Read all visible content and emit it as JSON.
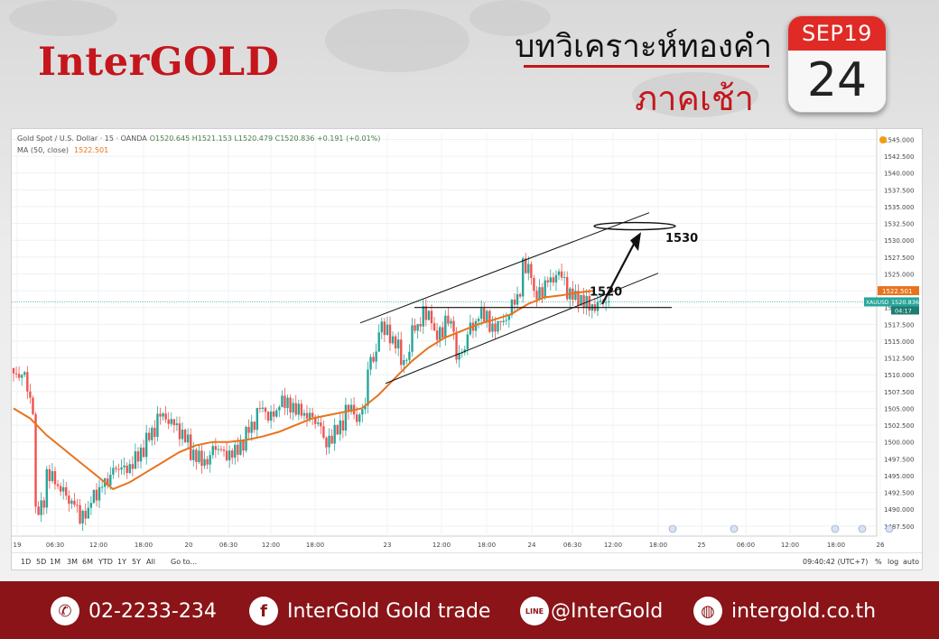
{
  "header": {
    "logo": "InterGOLD",
    "title": "บทวิเคราะห์ทองคำ",
    "subtitle": "ภาคเช้า",
    "calendar_month": "SEP19",
    "calendar_day": "24"
  },
  "chart_header": {
    "symbol": "Gold Spot / U.S. Dollar · 15 · OANDA",
    "ohlc": "O1520.645  H1521.153  L1520.479  C1520.836  +0.191 (+0.01%)",
    "ma_label": "MA (50, close)",
    "ma_value": "1522.501"
  },
  "chart_data": {
    "type": "line",
    "title": "Gold Spot / U.S. Dollar · 15 · OANDA",
    "xlabel": "",
    "ylabel": "",
    "ylim": [
      1486,
      1546
    ],
    "grid": true,
    "y_ticks": [
      "1545.000",
      "1542.500",
      "1540.000",
      "1537.500",
      "1535.000",
      "1532.500",
      "1530.000",
      "1527.500",
      "1525.000",
      "1522.501",
      "1520.000",
      "1517.500",
      "1515.000",
      "1512.500",
      "1510.000",
      "1507.500",
      "1505.000",
      "1502.500",
      "1500.000",
      "1497.500",
      "1495.000",
      "1492.500",
      "1490.000",
      "1487.500"
    ],
    "x_ticks": [
      "19",
      "06:30",
      "12:00",
      "18:00",
      "20",
      "06:30",
      "12:00",
      "18:00",
      "23",
      "12:00",
      "18:00",
      "24",
      "06:30",
      "12:00",
      "18:00",
      "25",
      "06:00",
      "12:00",
      "18:00",
      "26"
    ],
    "price_label": "XAUUSD",
    "price_value": "1520.836",
    "price_countdown": "04:17",
    "ma_tag": "1522.501",
    "series": [
      {
        "name": "Price",
        "values": [
          1510,
          1508,
          1490,
          1495,
          1493,
          1491,
          1489,
          1492,
          1494,
          1496,
          1496,
          1498,
          1501,
          1504,
          1503,
          1501,
          1498,
          1497,
          1499,
          1498,
          1499,
          1502,
          1505,
          1504,
          1506,
          1505,
          1504,
          1503,
          1500,
          1502,
          1505,
          1504,
          1512,
          1517,
          1515,
          1512,
          1517,
          1519,
          1516,
          1518,
          1513,
          1517,
          1519,
          1517,
          1518,
          1521,
          1526,
          1522,
          1524,
          1525,
          1522,
          1521,
          1520,
          1520.8
        ]
      },
      {
        "name": "MA (50, close)",
        "values": [
          1505,
          1503.5,
          1501,
          1499,
          1497,
          1495,
          1493,
          1494,
          1495.5,
          1497,
          1498.5,
          1499.5,
          1500,
          1500,
          1500.3,
          1500.8,
          1501.5,
          1502.5,
          1503.5,
          1504,
          1504.5,
          1505,
          1507,
          1509.5,
          1512,
          1514,
          1515.5,
          1516.5,
          1517.5,
          1518.2,
          1519,
          1520.5,
          1521.5,
          1521.8,
          1522.2,
          1522.501
        ]
      }
    ],
    "annotations": [
      {
        "text": "1530",
        "value": 1530
      },
      {
        "text": "1520",
        "value": 1520
      }
    ]
  },
  "bottom_bar": {
    "timeframes": [
      "1D",
      "5D",
      "1M",
      "3M",
      "6M",
      "YTD",
      "1Y",
      "5Y",
      "All"
    ],
    "goto": "Go to...",
    "time": "09:40:42 (UTC+7)",
    "options": [
      "%",
      "log",
      "auto"
    ]
  },
  "footer": {
    "phone": "02-2233-234",
    "facebook": "InterGold Gold trade",
    "line": "@InterGold",
    "line_badge": "LINE",
    "website": "intergold.co.th",
    "facebook_glyph": "f",
    "phone_glyph": "✆",
    "web_glyph": "◍"
  },
  "colors": {
    "brand_red": "#c4161c",
    "footer_red": "#8a1418",
    "candle_up": "#26a69a",
    "candle_down": "#ef5350",
    "ma": "#e8731c"
  }
}
